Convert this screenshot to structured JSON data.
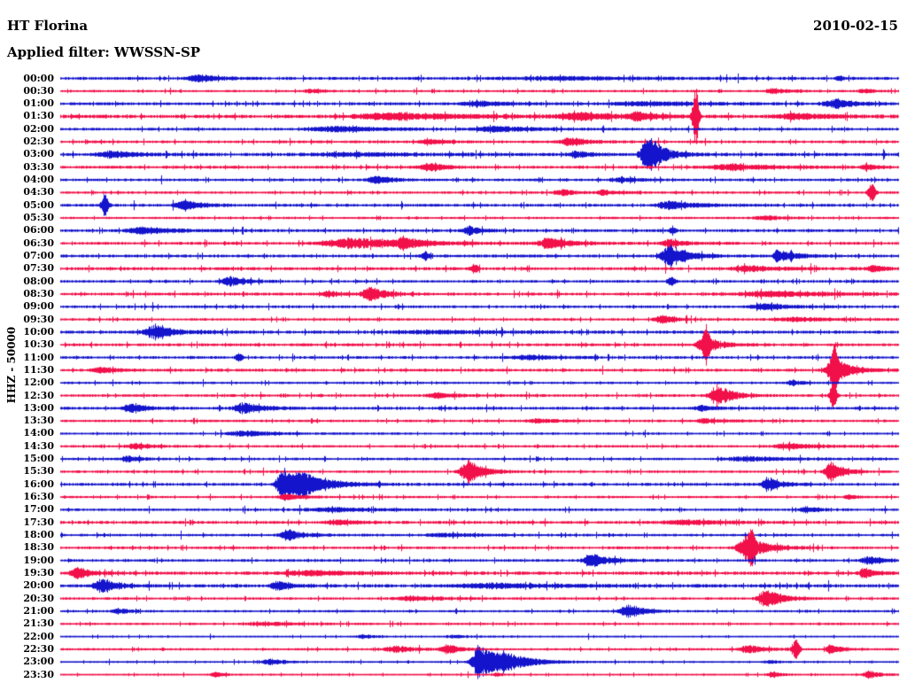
{
  "header": {
    "station": "HT Florina",
    "date": "2010-02-15",
    "applied_filter": "Applied filter: WWSSN-SP"
  },
  "y_axis_label": "HHZ - 50000",
  "colors": {
    "trace_blue": "#1414cc",
    "trace_red": "#f2104a",
    "text": "#000000",
    "background": "#ffffff"
  },
  "chart_data": {
    "type": "line",
    "subtype": "helicorder-seismogram",
    "title": "HT Florina",
    "date": "2010-02-15",
    "filter": "WWSSN-SP",
    "channel": "HHZ",
    "scale": 50000,
    "minutes_per_row": 30,
    "row_color_rule": "hour lines blue, half-hour lines red, alternating",
    "event_format": "[position_fraction_along_row, half_amplitude_px, width_px, optional 'spike']",
    "rows": [
      {
        "label": "00:00",
        "color": "blue",
        "noise": 1.5,
        "events": [
          [
            0.166,
            4,
            16
          ],
          [
            0.6,
            1.5,
            80
          ],
          [
            0.93,
            3,
            3,
            "spike"
          ]
        ]
      },
      {
        "label": "00:30",
        "color": "red",
        "noise": 1.2,
        "events": [
          [
            0.3,
            1.8,
            12
          ],
          [
            0.852,
            2.5,
            14
          ],
          [
            0.96,
            2,
            10
          ]
        ]
      },
      {
        "label": "01:00",
        "color": "blue",
        "noise": 1.5,
        "events": [
          [
            0.499,
            3,
            22
          ],
          [
            0.7,
            2,
            50
          ],
          [
            0.925,
            5,
            16
          ]
        ]
      },
      {
        "label": "01:30",
        "color": "red",
        "noise": 1.8,
        "events": [
          [
            0.4,
            3.5,
            60
          ],
          [
            0.62,
            3.5,
            30
          ],
          [
            0.689,
            4.5,
            12
          ],
          [
            0.758,
            32,
            2.5,
            "spike"
          ],
          [
            0.88,
            3,
            30
          ]
        ]
      },
      {
        "label": "02:00",
        "color": "blue",
        "noise": 1.4,
        "events": [
          [
            0.33,
            3,
            40
          ],
          [
            0.52,
            3,
            30
          ]
        ]
      },
      {
        "label": "02:30",
        "color": "red",
        "noise": 1.4,
        "events": [
          [
            0.44,
            2.5,
            15
          ],
          [
            0.608,
            4.5,
            14
          ]
        ]
      },
      {
        "label": "03:00",
        "color": "blue",
        "noise": 1.7,
        "events": [
          [
            0.06,
            3.5,
            20
          ],
          [
            0.35,
            1.5,
            60
          ],
          [
            0.615,
            3.5,
            10
          ],
          [
            0.702,
            24,
            11
          ]
        ]
      },
      {
        "label": "03:30",
        "color": "red",
        "noise": 1.5,
        "events": [
          [
            0.44,
            4.5,
            13
          ],
          [
            0.8,
            3,
            35
          ],
          [
            0.962,
            3,
            8
          ]
        ]
      },
      {
        "label": "04:00",
        "color": "blue",
        "noise": 1.4,
        "events": [
          [
            0.378,
            4.5,
            13
          ],
          [
            0.67,
            2,
            18
          ]
        ]
      },
      {
        "label": "04:30",
        "color": "red",
        "noise": 1.3,
        "events": [
          [
            0.6,
            3,
            12
          ],
          [
            0.648,
            2.8,
            9
          ],
          [
            0.968,
            10,
            3,
            "spike"
          ]
        ]
      },
      {
        "label": "05:00",
        "color": "blue",
        "noise": 1.5,
        "events": [
          [
            0.053,
            12,
            2.5,
            "spike"
          ],
          [
            0.148,
            5,
            14
          ],
          [
            0.728,
            4.5,
            20
          ]
        ]
      },
      {
        "label": "05:30",
        "color": "red",
        "noise": 1.2,
        "events": [
          [
            0.84,
            2.2,
            16
          ]
        ]
      },
      {
        "label": "06:00",
        "color": "blue",
        "noise": 1.5,
        "events": [
          [
            0.1,
            3.5,
            25
          ],
          [
            0.488,
            4.5,
            10
          ],
          [
            0.731,
            3,
            3,
            "spike"
          ]
        ]
      },
      {
        "label": "06:30",
        "color": "red",
        "noise": 1.5,
        "events": [
          [
            0.35,
            5.5,
            45
          ],
          [
            0.41,
            6.5,
            10
          ],
          [
            0.585,
            6.5,
            16
          ],
          [
            0.727,
            4.5,
            12
          ]
        ]
      },
      {
        "label": "07:00",
        "color": "blue",
        "noise": 1.5,
        "events": [
          [
            0.435,
            4.5,
            3,
            "spike"
          ],
          [
            0.728,
            12,
            14
          ],
          [
            0.855,
            7,
            2.5,
            "spike"
          ],
          [
            0.866,
            4.5,
            12
          ]
        ]
      },
      {
        "label": "07:30",
        "color": "red",
        "noise": 1.6,
        "events": [
          [
            0.494,
            4.5,
            3,
            "spike"
          ],
          [
            0.82,
            2.8,
            25
          ],
          [
            0.97,
            3.5,
            10
          ]
        ]
      },
      {
        "label": "08:00",
        "color": "blue",
        "noise": 1.4,
        "events": [
          [
            0.203,
            5,
            13
          ],
          [
            0.729,
            4.5,
            3,
            "spike"
          ]
        ]
      },
      {
        "label": "08:30",
        "color": "red",
        "noise": 1.5,
        "events": [
          [
            0.32,
            3.5,
            8
          ],
          [
            0.37,
            7.5,
            13
          ],
          [
            0.85,
            2.8,
            50
          ]
        ]
      },
      {
        "label": "09:00",
        "color": "blue",
        "noise": 1.4,
        "events": [
          [
            0.84,
            3.2,
            20
          ]
        ]
      },
      {
        "label": "09:30",
        "color": "red",
        "noise": 1.3,
        "events": [
          [
            0.718,
            5,
            10
          ],
          [
            0.88,
            2.2,
            30
          ]
        ]
      },
      {
        "label": "10:00",
        "color": "blue",
        "noise": 1.6,
        "events": [
          [
            0.113,
            7.5,
            16
          ],
          [
            0.45,
            1.5,
            60
          ]
        ]
      },
      {
        "label": "10:30",
        "color": "red",
        "noise": 1.5,
        "events": [
          [
            0.77,
            8,
            13
          ],
          [
            0.77,
            13,
            3,
            "spike"
          ]
        ]
      },
      {
        "label": "11:00",
        "color": "blue",
        "noise": 1.4,
        "events": [
          [
            0.213,
            4,
            3,
            "spike"
          ],
          [
            0.56,
            2.5,
            25
          ]
        ]
      },
      {
        "label": "11:30",
        "color": "red",
        "noise": 1.5,
        "events": [
          [
            0.05,
            3.5,
            12
          ],
          [
            0.924,
            14,
            12
          ],
          [
            0.924,
            20,
            2.5,
            "spike"
          ]
        ]
      },
      {
        "label": "12:00",
        "color": "blue",
        "noise": 1.2,
        "events": [
          [
            0.874,
            3,
            8
          ]
        ]
      },
      {
        "label": "12:30",
        "color": "red",
        "noise": 1.4,
        "events": [
          [
            0.45,
            2.8,
            15
          ],
          [
            0.785,
            10,
            13
          ],
          [
            0.922,
            16,
            2.5,
            "spike"
          ]
        ]
      },
      {
        "label": "13:00",
        "color": "blue",
        "noise": 1.5,
        "events": [
          [
            0.085,
            5,
            12
          ],
          [
            0.22,
            6,
            15
          ],
          [
            0.765,
            3,
            10
          ]
        ]
      },
      {
        "label": "13:30",
        "color": "red",
        "noise": 1.3,
        "events": [
          [
            0.57,
            2.2,
            16
          ],
          [
            0.77,
            2.8,
            12
          ]
        ]
      },
      {
        "label": "14:00",
        "color": "blue",
        "noise": 1.2,
        "events": [
          [
            0.22,
            2.8,
            25
          ]
        ]
      },
      {
        "label": "14:30",
        "color": "red",
        "noise": 1.3,
        "events": [
          [
            0.09,
            2.8,
            16
          ],
          [
            0.87,
            2.8,
            25
          ]
        ]
      },
      {
        "label": "15:00",
        "color": "blue",
        "noise": 1.3,
        "events": [
          [
            0.08,
            3.5,
            10
          ],
          [
            0.82,
            2.2,
            35
          ]
        ]
      },
      {
        "label": "15:30",
        "color": "red",
        "noise": 1.3,
        "events": [
          [
            0.487,
            13,
            12
          ],
          [
            0.92,
            11,
            10
          ]
        ]
      },
      {
        "label": "16:00",
        "color": "blue",
        "noise": 1.5,
        "events": [
          [
            0.266,
            19,
            10
          ],
          [
            0.29,
            10,
            22
          ],
          [
            0.845,
            7.5,
            10
          ]
        ]
      },
      {
        "label": "16:30",
        "color": "red",
        "noise": 1.2,
        "events": [
          [
            0.27,
            3.5,
            12
          ],
          [
            0.94,
            2.8,
            6
          ]
        ]
      },
      {
        "label": "17:00",
        "color": "blue",
        "noise": 1.3,
        "events": [
          [
            0.33,
            2,
            45
          ],
          [
            0.89,
            3.2,
            10
          ]
        ]
      },
      {
        "label": "17:30",
        "color": "red",
        "noise": 1.5,
        "events": [
          [
            0.33,
            2.8,
            16
          ],
          [
            0.75,
            2.2,
            35
          ]
        ]
      },
      {
        "label": "18:00",
        "color": "blue",
        "noise": 1.3,
        "events": [
          [
            0.272,
            5.5,
            13
          ],
          [
            0.46,
            1.8,
            30
          ]
        ]
      },
      {
        "label": "18:30",
        "color": "red",
        "noise": 1.4,
        "events": [
          [
            0.82,
            12,
            15
          ],
          [
            0.825,
            18,
            2.5,
            "spike"
          ]
        ]
      },
      {
        "label": "19:00",
        "color": "blue",
        "noise": 1.4,
        "events": [
          [
            0.635,
            7.5,
            13
          ],
          [
            0.965,
            4.5,
            12
          ]
        ]
      },
      {
        "label": "19:30",
        "color": "red",
        "noise": 1.7,
        "events": [
          [
            0.02,
            6.5,
            10
          ],
          [
            0.3,
            2.5,
            35
          ],
          [
            0.96,
            5.5,
            8
          ]
        ]
      },
      {
        "label": "20:00",
        "color": "blue",
        "noise": 1.7,
        "events": [
          [
            0.05,
            7.5,
            12
          ],
          [
            0.26,
            5.5,
            10
          ],
          [
            0.52,
            2.2,
            60
          ]
        ]
      },
      {
        "label": "20:30",
        "color": "red",
        "noise": 1.3,
        "events": [
          [
            0.42,
            2.5,
            25
          ],
          [
            0.843,
            11,
            12
          ]
        ]
      },
      {
        "label": "21:00",
        "color": "blue",
        "noise": 1.2,
        "events": [
          [
            0.07,
            2.8,
            10
          ],
          [
            0.678,
            7.5,
            12
          ]
        ]
      },
      {
        "label": "21:30",
        "color": "red",
        "noise": 1.2,
        "events": [
          [
            0.25,
            1.8,
            30
          ]
        ]
      },
      {
        "label": "22:00",
        "color": "blue",
        "noise": 1.0,
        "events": [
          [
            0.36,
            2.2,
            10
          ],
          [
            0.47,
            1.8,
            12
          ]
        ]
      },
      {
        "label": "22:30",
        "color": "red",
        "noise": 1.2,
        "events": [
          [
            0.4,
            3.5,
            15
          ],
          [
            0.462,
            5.5,
            10
          ],
          [
            0.82,
            4.5,
            12
          ],
          [
            0.878,
            11,
            3,
            "spike"
          ],
          [
            0.92,
            5.5,
            8
          ]
        ]
      },
      {
        "label": "23:00",
        "color": "blue",
        "noise": 1.0,
        "events": [
          [
            0.25,
            3.5,
            12
          ],
          [
            0.5,
            21,
            11
          ],
          [
            0.53,
            9,
            22
          ],
          [
            0.845,
            1.8,
            8
          ]
        ]
      },
      {
        "label": "23:30",
        "color": "red",
        "noise": 1.0,
        "events": [
          [
            0.185,
            2.8,
            8
          ],
          [
            0.52,
            1.8,
            6
          ],
          [
            0.85,
            2.8,
            8
          ],
          [
            0.965,
            4.5,
            8
          ]
        ]
      }
    ]
  }
}
